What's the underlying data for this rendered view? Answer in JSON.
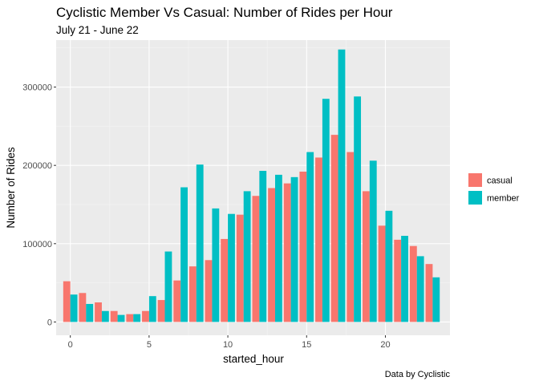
{
  "chart_data": {
    "type": "bar",
    "title": "Cyclistic Member Vs Casual: Number of Rides per Hour",
    "subtitle": "July 21 - June 22",
    "xlabel": "started_hour",
    "ylabel": "Number of Rides",
    "caption": "Data by Cyclistic",
    "x": [
      0,
      1,
      2,
      3,
      4,
      5,
      6,
      7,
      8,
      9,
      10,
      11,
      12,
      13,
      14,
      15,
      16,
      17,
      18,
      19,
      20,
      21,
      22,
      23
    ],
    "x_ticks": [
      0,
      5,
      10,
      15,
      20
    ],
    "x_tick_labels": [
      "0",
      "5",
      "10",
      "15",
      "20"
    ],
    "y_ticks": [
      0,
      100000,
      200000,
      300000
    ],
    "y_tick_labels": [
      "0",
      "100000",
      "200000",
      "300000"
    ],
    "xlim": [
      -0.9,
      24.1
    ],
    "ylim": [
      -17000,
      360000
    ],
    "grid": true,
    "legend_position": "right",
    "series": [
      {
        "name": "casual",
        "color": "#F8766D",
        "values": [
          52000,
          37000,
          25000,
          14000,
          10000,
          14000,
          28000,
          53000,
          71000,
          79000,
          106000,
          137000,
          161000,
          171000,
          177000,
          192000,
          210000,
          239000,
          217000,
          167000,
          123000,
          105000,
          97000,
          74000
        ]
      },
      {
        "name": "member",
        "color": "#00BFC4",
        "values": [
          35000,
          23000,
          14000,
          9000,
          10000,
          33000,
          90000,
          172000,
          201000,
          145000,
          138000,
          167000,
          193000,
          188000,
          185000,
          217000,
          285000,
          348000,
          288000,
          206000,
          142000,
          110000,
          84000,
          57000
        ]
      }
    ]
  }
}
